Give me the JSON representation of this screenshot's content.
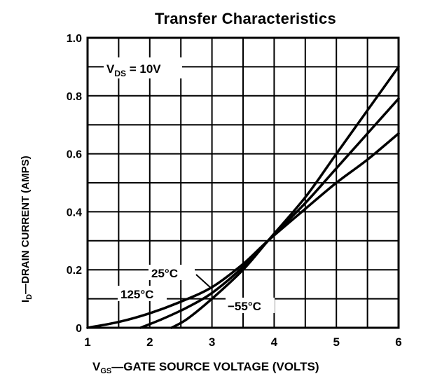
{
  "chart_data": {
    "type": "line",
    "title": "Transfer Characteristics",
    "xlabel": "VGS—GATE SOURCE VOLTAGE (VOLTS)",
    "xlabel_main": "V",
    "xlabel_sub": "GS",
    "xlabel_rest": "—GATE SOURCE VOLTAGE (VOLTS)",
    "ylabel": "ID—DRAIN CURRENT (AMPS)",
    "ylabel_main": "I",
    "ylabel_sub": "D",
    "ylabel_rest": "—DRAIN CURRENT (AMPS)",
    "xlim": [
      1,
      6
    ],
    "ylim": [
      0,
      1.0
    ],
    "x_ticks": [
      "1",
      "2",
      "3",
      "4",
      "5",
      "6"
    ],
    "y_ticks": [
      "0",
      "0.2",
      "0.4",
      "0.6",
      "0.8",
      "1.0"
    ],
    "grid": true,
    "grid_x_step": 0.5,
    "grid_y_step": 0.1,
    "annotation": "VDS = 10V",
    "annotation_main": "V",
    "annotation_sub": "DS",
    "annotation_rest": " = 10V",
    "series": [
      {
        "name": "-55°C",
        "label": "−55°C",
        "x": [
          2.35,
          2.6,
          3.0,
          3.5,
          3.9,
          4.5,
          5.0,
          5.5,
          6.0
        ],
        "y": [
          0.0,
          0.03,
          0.1,
          0.2,
          0.3,
          0.45,
          0.6,
          0.75,
          0.9
        ]
      },
      {
        "name": "25°C",
        "label": "25°C",
        "x": [
          1.85,
          2.2,
          2.6,
          3.0,
          3.5,
          3.9,
          4.5,
          5.0,
          5.5,
          6.0
        ],
        "y": [
          0.0,
          0.03,
          0.07,
          0.12,
          0.21,
          0.3,
          0.43,
          0.55,
          0.67,
          0.79
        ]
      },
      {
        "name": "125°C",
        "label": "125°C",
        "x": [
          1.0,
          1.5,
          2.0,
          2.5,
          3.0,
          3.5,
          3.9,
          4.5,
          5.0,
          5.5,
          6.0
        ],
        "y": [
          0.0,
          0.02,
          0.05,
          0.09,
          0.14,
          0.22,
          0.3,
          0.41,
          0.5,
          0.58,
          0.67
        ]
      }
    ]
  }
}
